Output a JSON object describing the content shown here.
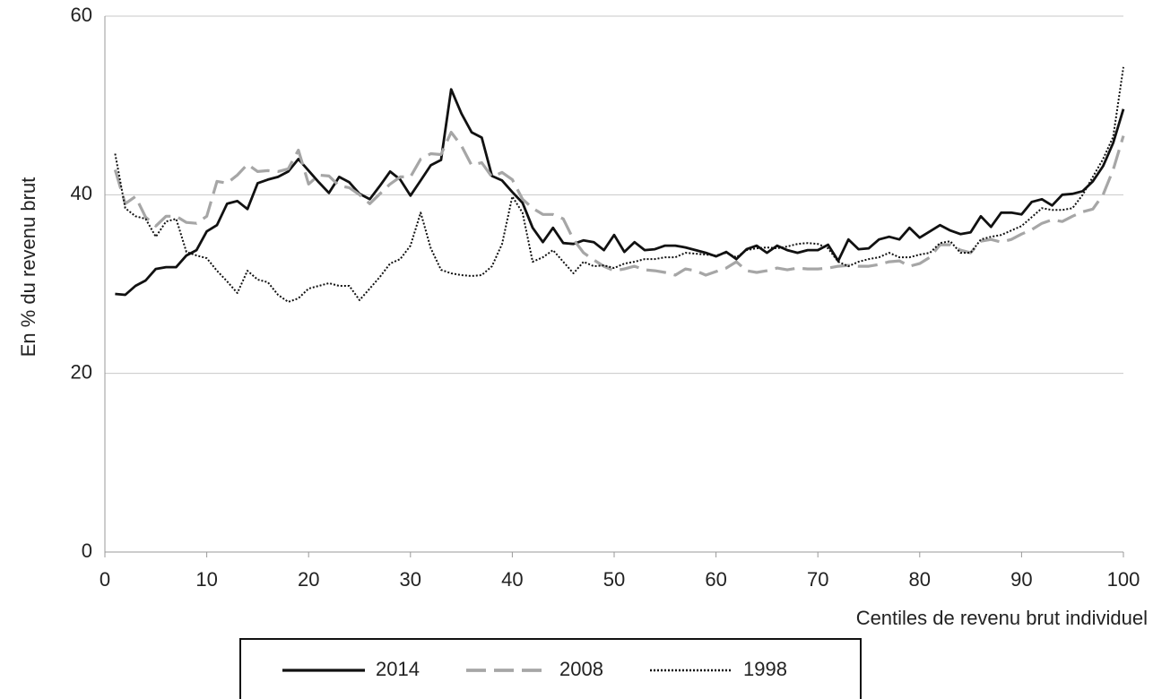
{
  "chart_data": {
    "type": "line",
    "x_label": "Centiles de revenu brut individuel",
    "y_label": "En % du revenu brut",
    "x": [
      1,
      2,
      3,
      4,
      5,
      6,
      7,
      8,
      9,
      10,
      11,
      12,
      13,
      14,
      15,
      16,
      17,
      18,
      19,
      20,
      21,
      22,
      23,
      24,
      25,
      26,
      27,
      28,
      29,
      30,
      31,
      32,
      33,
      34,
      35,
      36,
      37,
      38,
      39,
      40,
      41,
      42,
      43,
      44,
      45,
      46,
      47,
      48,
      49,
      50,
      51,
      52,
      53,
      54,
      55,
      56,
      57,
      58,
      59,
      60,
      61,
      62,
      63,
      64,
      65,
      66,
      67,
      68,
      69,
      70,
      71,
      72,
      73,
      74,
      75,
      76,
      77,
      78,
      79,
      80,
      81,
      82,
      83,
      84,
      85,
      86,
      87,
      88,
      89,
      90,
      91,
      92,
      93,
      94,
      95,
      96,
      97,
      98,
      99,
      100
    ],
    "series": [
      {
        "name": "2014",
        "color": "#111111",
        "style": "solid",
        "values": [
          28.9,
          28.8,
          29.8,
          30.4,
          31.7,
          31.9,
          31.9,
          33.2,
          33.8,
          35.9,
          36.6,
          39.0,
          39.3,
          38.4,
          41.3,
          41.7,
          42.0,
          42.6,
          44.0,
          42.7,
          41.4,
          40.2,
          42.0,
          41.4,
          40.1,
          39.5,
          41.0,
          42.6,
          41.7,
          39.9,
          41.6,
          43.3,
          43.9,
          51.8,
          49.1,
          47.0,
          46.4,
          42.1,
          41.6,
          40.3,
          39.1,
          36.3,
          34.7,
          36.3,
          34.6,
          34.5,
          34.9,
          34.7,
          33.8,
          35.5,
          33.6,
          34.7,
          33.8,
          33.9,
          34.3,
          34.3,
          34.1,
          33.8,
          33.5,
          33.1,
          33.6,
          32.8,
          33.9,
          34.3,
          33.5,
          34.3,
          33.8,
          33.5,
          33.8,
          33.8,
          34.4,
          32.6,
          35.0,
          33.9,
          34.0,
          35.0,
          35.3,
          35.0,
          36.3,
          35.2,
          35.9,
          36.6,
          36.0,
          35.6,
          35.8,
          37.6,
          36.4,
          38.0,
          38.0,
          37.8,
          39.2,
          39.5,
          38.8,
          40.0,
          40.1,
          40.4,
          41.5,
          43.2,
          45.8,
          49.6
        ]
      },
      {
        "name": "2008",
        "color": "#a6a6a6",
        "style": "dashed",
        "values": [
          42.8,
          39.0,
          39.8,
          37.5,
          36.5,
          37.6,
          37.6,
          36.9,
          36.8,
          37.6,
          41.5,
          41.3,
          42.2,
          43.4,
          42.6,
          42.7,
          42.6,
          42.9,
          45.0,
          41.2,
          42.2,
          42.1,
          41.0,
          40.8,
          40.0,
          39.0,
          40.1,
          41.2,
          42.0,
          42.0,
          44.0,
          44.6,
          44.5,
          47.0,
          45.5,
          43.3,
          43.6,
          42.0,
          42.5,
          41.7,
          39.5,
          38.5,
          37.8,
          37.8,
          37.3,
          35.0,
          33.5,
          32.7,
          32.0,
          31.5,
          31.7,
          32.0,
          31.6,
          31.5,
          31.3,
          31.0,
          31.7,
          31.5,
          31.0,
          31.4,
          31.8,
          32.5,
          31.5,
          31.3,
          31.5,
          31.8,
          31.6,
          31.8,
          31.7,
          31.7,
          31.8,
          32.0,
          32.1,
          32.0,
          32.0,
          32.2,
          32.5,
          32.6,
          32.0,
          32.3,
          33.0,
          34.4,
          34.4,
          33.8,
          33.5,
          34.8,
          35.0,
          34.7,
          35.0,
          35.6,
          36.1,
          36.8,
          37.2,
          37.0,
          37.6,
          38.1,
          38.4,
          40.0,
          42.8,
          46.6
        ]
      },
      {
        "name": "1998",
        "color": "#111111",
        "style": "dotted",
        "values": [
          44.6,
          38.5,
          37.6,
          37.3,
          35.3,
          37.0,
          37.3,
          33.6,
          33.2,
          32.9,
          31.5,
          30.3,
          29.0,
          31.5,
          30.5,
          30.2,
          28.8,
          28.0,
          28.4,
          29.5,
          29.8,
          30.1,
          29.8,
          29.8,
          28.2,
          29.5,
          30.8,
          32.3,
          32.8,
          34.3,
          38.0,
          34.0,
          31.6,
          31.2,
          31.0,
          30.9,
          31.0,
          32.0,
          34.5,
          39.8,
          38.0,
          32.5,
          33.0,
          33.8,
          32.5,
          31.2,
          32.5,
          32.0,
          32.1,
          31.8,
          32.3,
          32.5,
          32.8,
          32.8,
          33.0,
          33.0,
          33.5,
          33.4,
          33.3,
          33.2,
          33.5,
          33.0,
          33.8,
          34.0,
          34.1,
          34.0,
          34.2,
          34.5,
          34.6,
          34.5,
          34.0,
          32.5,
          32.0,
          32.5,
          32.8,
          33.0,
          33.5,
          33.0,
          33.0,
          33.3,
          33.5,
          34.6,
          34.8,
          33.5,
          33.5,
          35.0,
          35.3,
          35.5,
          36.0,
          36.5,
          37.5,
          38.5,
          38.3,
          38.3,
          38.5,
          40.0,
          42.0,
          44.0,
          46.5,
          54.3
        ]
      }
    ],
    "xlim": [
      0,
      100
    ],
    "xticks": [
      0,
      10,
      20,
      30,
      40,
      50,
      60,
      70,
      80,
      90,
      100
    ],
    "ylim": [
      0,
      60
    ],
    "yticks": [
      0,
      20,
      40,
      60
    ],
    "grid": true,
    "legend": "bottom"
  }
}
